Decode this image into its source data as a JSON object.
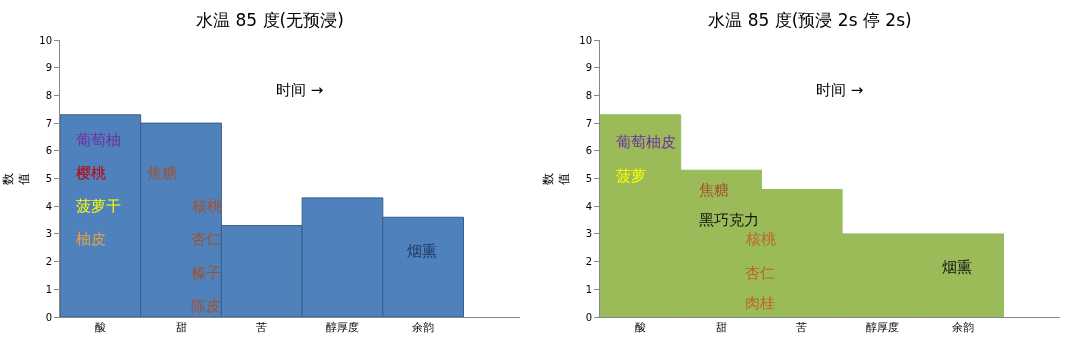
{
  "chart_data": [
    {
      "type": "bar",
      "title": "水温 85 度(无预浸)",
      "ylabel": "数值",
      "categories": [
        "酸",
        "甜",
        "苦",
        "醇厚度",
        "余韵"
      ],
      "values": [
        7.3,
        7.0,
        3.3,
        4.3,
        3.6
      ],
      "color": "#4f81bd",
      "ylim": [
        0,
        10
      ],
      "yticks": [
        0,
        1,
        2,
        3,
        4,
        5,
        6,
        7,
        8,
        9,
        10
      ],
      "grid": false,
      "annotations": [
        "时间 →",
        "葡萄柚",
        "樱桃",
        "菠萝干",
        "柚皮",
        "焦糖",
        "核桃",
        "杏仁",
        "榛子",
        "陈皮",
        "烟熏"
      ]
    },
    {
      "type": "bar",
      "title": "水温 85 度(预浸 2s 停 2s)",
      "ylabel": "数值",
      "categories": [
        "酸",
        "甜",
        "苦",
        "醇厚度",
        "余韵"
      ],
      "values": [
        7.3,
        5.3,
        4.6,
        3.0,
        3.0
      ],
      "color": "#9bbb59",
      "ylim": [
        0,
        10
      ],
      "yticks": [
        0,
        1,
        2,
        3,
        4,
        5,
        6,
        7,
        8,
        9,
        10
      ],
      "grid": false,
      "annotations": [
        "时间 →",
        "葡萄柚皮",
        "菠萝",
        "焦糖",
        "黑巧克力",
        "核桃",
        "杏仁",
        "肉桂",
        "烟熏"
      ]
    }
  ]
}
